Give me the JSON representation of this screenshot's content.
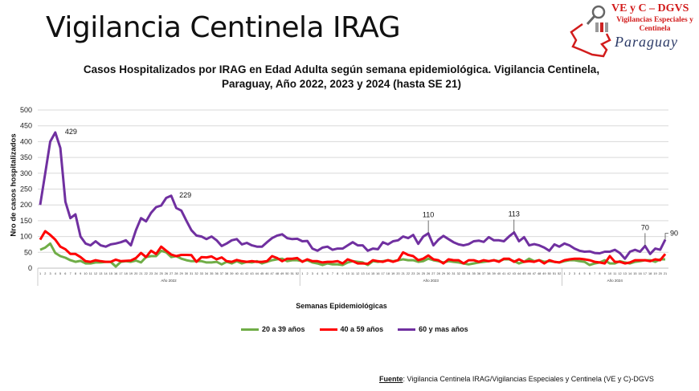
{
  "header": {
    "title": "Vigilancia Centinela IRAG"
  },
  "logo": {
    "line1": "VE y C – DGVS",
    "line2": "Vigilancias Especiales y Centinela",
    "line3": "Paraguay"
  },
  "footer": {
    "label": "Fuente",
    "text": ": Vigilancia  Centinela IRAG/Vigilancias Especiales y Centinela (VE y C)-DGVS"
  },
  "chart_data": {
    "type": "line",
    "title_line1": "Casos Hospitalizados por IRAG en Edad Adulta según semana epidemiológica. Vigilancia Centinela,",
    "title_line2": "Paraguay, Año 2022, 2023 y 2024 (hasta SE 21)",
    "xlabel": "Semanas Epidemiológicas",
    "ylabel": "Nro de casos hospitalizados",
    "ylim": [
      0,
      500
    ],
    "yticks": [
      0,
      50,
      100,
      150,
      200,
      250,
      300,
      350,
      400,
      450,
      500
    ],
    "grid": true,
    "legend_position": "bottom",
    "groups": [
      {
        "label": "Año 2022",
        "weeks": 52
      },
      {
        "label": "Año 2023",
        "weeks": 52
      },
      {
        "label": "Año 2024",
        "weeks": 21
      }
    ],
    "series": [
      {
        "name": "20 a 39 años",
        "color": "#70ad47",
        "values": [
          58,
          65,
          78,
          48,
          38,
          33,
          25,
          20,
          23,
          15,
          15,
          18,
          18,
          20,
          20,
          5,
          20,
          22,
          20,
          24,
          18,
          35,
          38,
          38,
          55,
          50,
          35,
          38,
          30,
          25,
          22,
          22,
          22,
          18,
          18,
          20,
          12,
          20,
          15,
          22,
          15,
          20,
          18,
          22,
          15,
          20,
          25,
          28,
          30,
          22,
          25,
          25,
          22,
          25,
          18,
          15,
          10,
          15,
          12,
          12,
          10,
          18,
          22,
          20,
          18,
          10,
          22,
          20,
          22,
          25,
          22,
          25,
          28,
          25,
          25,
          20,
          22,
          30,
          25,
          22,
          18,
          22,
          20,
          18,
          15,
          12,
          15,
          18,
          20,
          22,
          25,
          22,
          28,
          28,
          22,
          15,
          20,
          30,
          22,
          25,
          20,
          22,
          20,
          18,
          22,
          25,
          25,
          22,
          20,
          10,
          15,
          18,
          25,
          15,
          15,
          22,
          18,
          15,
          20,
          22,
          25,
          25,
          20,
          28,
          28
        ]
      },
      {
        "name": "40 a 59 años",
        "color": "#ff0000",
        "values": [
          90,
          117,
          105,
          90,
          68,
          60,
          45,
          45,
          35,
          22,
          20,
          25,
          22,
          20,
          20,
          27,
          22,
          23,
          24,
          32,
          48,
          35,
          55,
          45,
          68,
          55,
          43,
          38,
          42,
          42,
          41,
          20,
          35,
          34,
          37,
          28,
          34,
          22,
          20,
          26,
          22,
          20,
          22,
          20,
          20,
          22,
          38,
          32,
          22,
          30,
          30,
          32,
          20,
          28,
          22,
          22,
          18,
          20,
          20,
          22,
          15,
          28,
          22,
          15,
          15,
          14,
          25,
          22,
          20,
          25,
          20,
          25,
          50,
          42,
          38,
          25,
          30,
          40,
          28,
          25,
          15,
          28,
          25,
          25,
          15,
          25,
          25,
          20,
          25,
          22,
          25,
          20,
          30,
          30,
          20,
          28,
          20,
          22,
          20,
          25,
          15,
          25,
          20,
          18,
          25,
          28,
          30,
          30,
          28,
          25,
          20,
          18,
          15,
          38,
          20,
          20,
          15,
          18,
          25,
          25,
          25,
          22,
          28,
          25,
          45
        ]
      },
      {
        "name": "60 y mas años",
        "color": "#7030a0",
        "values": [
          200,
          300,
          400,
          429,
          380,
          210,
          158,
          170,
          100,
          78,
          72,
          85,
          72,
          68,
          75,
          78,
          82,
          88,
          72,
          120,
          158,
          148,
          175,
          193,
          198,
          222,
          229,
          190,
          182,
          150,
          120,
          103,
          100,
          92,
          100,
          88,
          70,
          78,
          88,
          92,
          75,
          80,
          72,
          68,
          68,
          82,
          95,
          103,
          107,
          95,
          92,
          93,
          85,
          86,
          62,
          55,
          65,
          68,
          58,
          62,
          62,
          72,
          82,
          72,
          72,
          55,
          62,
          60,
          82,
          75,
          85,
          88,
          100,
          95,
          105,
          77,
          100,
          110,
          72,
          90,
          102,
          92,
          82,
          75,
          72,
          76,
          85,
          87,
          83,
          98,
          88,
          88,
          85,
          100,
          113,
          85,
          98,
          72,
          76,
          72,
          65,
          55,
          75,
          68,
          78,
          72,
          62,
          55,
          52,
          53,
          48,
          47,
          52,
          52,
          58,
          48,
          30,
          52,
          58,
          52,
          70,
          45,
          62,
          58,
          90
        ]
      }
    ],
    "annotations": [
      {
        "series": 2,
        "index": 3,
        "text": "429"
      },
      {
        "series": 2,
        "index": 26,
        "text": "229"
      },
      {
        "series": 2,
        "index": 77,
        "text": "110"
      },
      {
        "series": 2,
        "index": 94,
        "text": "113"
      },
      {
        "series": 2,
        "index": 120,
        "text": "70"
      },
      {
        "series": 2,
        "index": 124,
        "text": "90"
      }
    ]
  }
}
